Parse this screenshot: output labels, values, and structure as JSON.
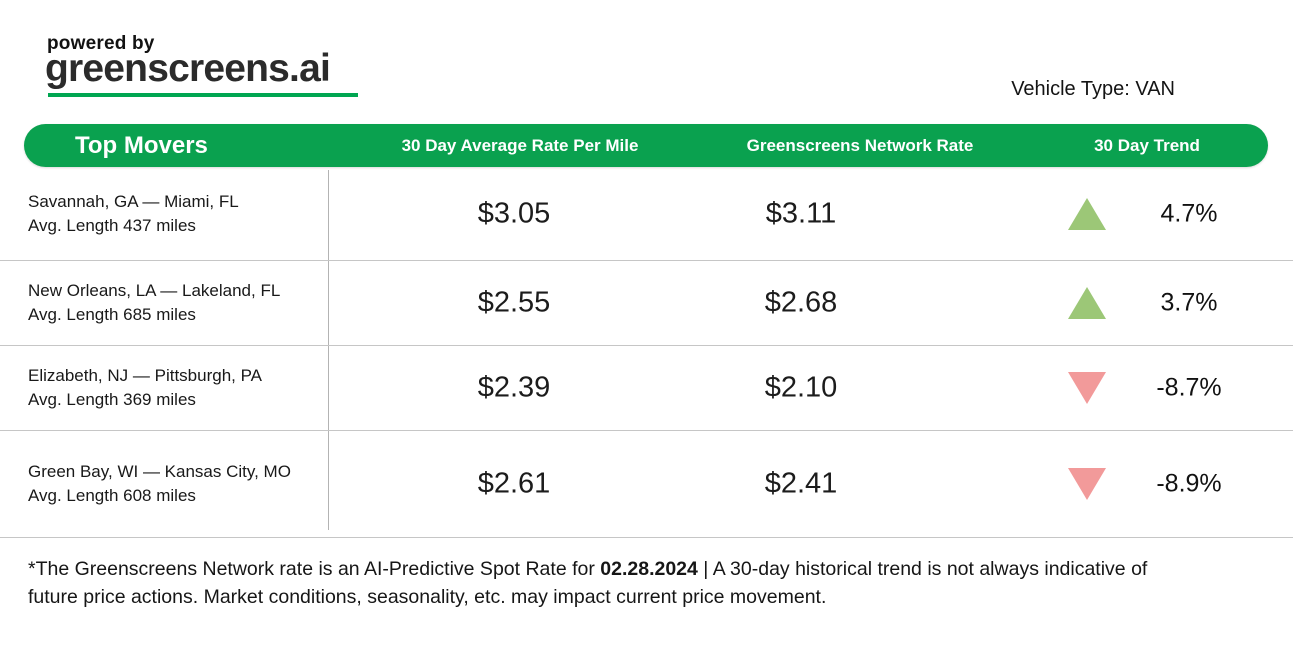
{
  "logo": {
    "powered_by": "powered by",
    "brand": "greenscreens.ai"
  },
  "vehicle_type": "Vehicle Type: VAN",
  "table": {
    "columns": [
      "Top Movers",
      "30 Day Average Rate Per Mile",
      "Greenscreens Network Rate",
      "30 Day Trend"
    ],
    "rows": [
      {
        "lane": "Savannah, GA — Miami, FL",
        "avg_length": "Avg. Length 437 miles",
        "avg_rate": "$3.05",
        "network_rate": "$3.11",
        "direction": "up",
        "trend": "4.7%"
      },
      {
        "lane": "New Orleans, LA — Lakeland, FL",
        "avg_length": "Avg. Length 685 miles",
        "avg_rate": "$2.55",
        "network_rate": "$2.68",
        "direction": "up",
        "trend": "3.7%"
      },
      {
        "lane": "Elizabeth, NJ — Pittsburgh, PA",
        "avg_length": "Avg. Length 369 miles",
        "avg_rate": "$2.39",
        "network_rate": "$2.10",
        "direction": "down",
        "trend": "-8.7%"
      },
      {
        "lane": "Green Bay, WI — Kansas City, MO",
        "avg_length": "Avg. Length 608 miles",
        "avg_rate": "$2.61",
        "network_rate": "$2.41",
        "direction": "down",
        "trend": "-8.9%"
      }
    ]
  },
  "footer": {
    "line1_before": "*The Greenscreens Network rate is an AI-Predictive Spot Rate for ",
    "date": "02.28.2024",
    "line1_after": " | A 30-day historical trend is not always indicative of",
    "line2": "future price actions. Market conditions, seasonality, etc. may impact current price movement."
  },
  "colors": {
    "brand_green": "#0aa14f",
    "underline_green": "#00a651",
    "trend_up": "#9cc777",
    "trend_down": "#f29a9a",
    "divider_gray": "#c6c6c6"
  }
}
